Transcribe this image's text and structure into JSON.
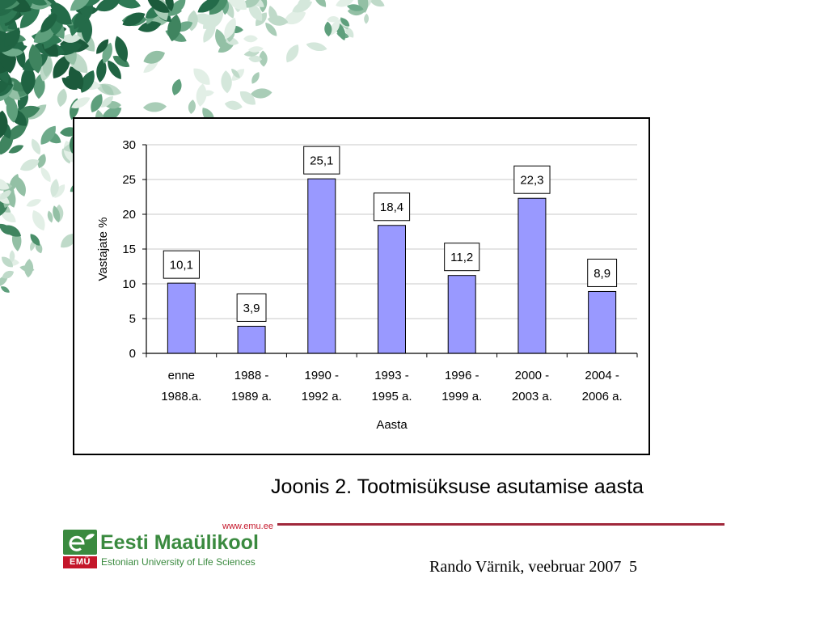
{
  "slide": {
    "caption": "Joonis 2. Tootmisüksuse asutamise aasta",
    "footer": {
      "author_date": "Rando Värnik, veebruar 2007",
      "page_number": "5"
    },
    "logo": {
      "website": "www.emu.ee",
      "name": "Eesti Maaülikool",
      "subtitle": "Estonian University of Life Sciences",
      "badge": "EMÜ",
      "icon": "emu-logo-icon"
    },
    "colors": {
      "background": "#ffffff",
      "logo_green": "#3a8a3f",
      "logo_red": "#c4162a",
      "rule": "#a0283b"
    }
  },
  "chart_data": {
    "type": "bar",
    "categories": [
      [
        "enne",
        "1988.a."
      ],
      [
        "1988 -",
        "1989 a."
      ],
      [
        "1990 -",
        "1992 a."
      ],
      [
        "1993 -",
        "1995 a."
      ],
      [
        "1996 -",
        "1999 a."
      ],
      [
        "2000 -",
        "2003 a."
      ],
      [
        "2004 -",
        "2006 a."
      ]
    ],
    "values": [
      10.1,
      3.9,
      25.1,
      18.4,
      11.2,
      22.3,
      8.9
    ],
    "data_labels": [
      "10,1",
      "3,9",
      "25,1",
      "18,4",
      "11,2",
      "22,3",
      "8,9"
    ],
    "xlabel": "Aasta",
    "ylabel": "Vastajate %",
    "ylim": [
      0,
      30
    ],
    "yticks": [
      0,
      5,
      10,
      15,
      20,
      25,
      30
    ],
    "grid": true,
    "bar_color": "#9999ff",
    "bar_edge_color": "#000000"
  }
}
